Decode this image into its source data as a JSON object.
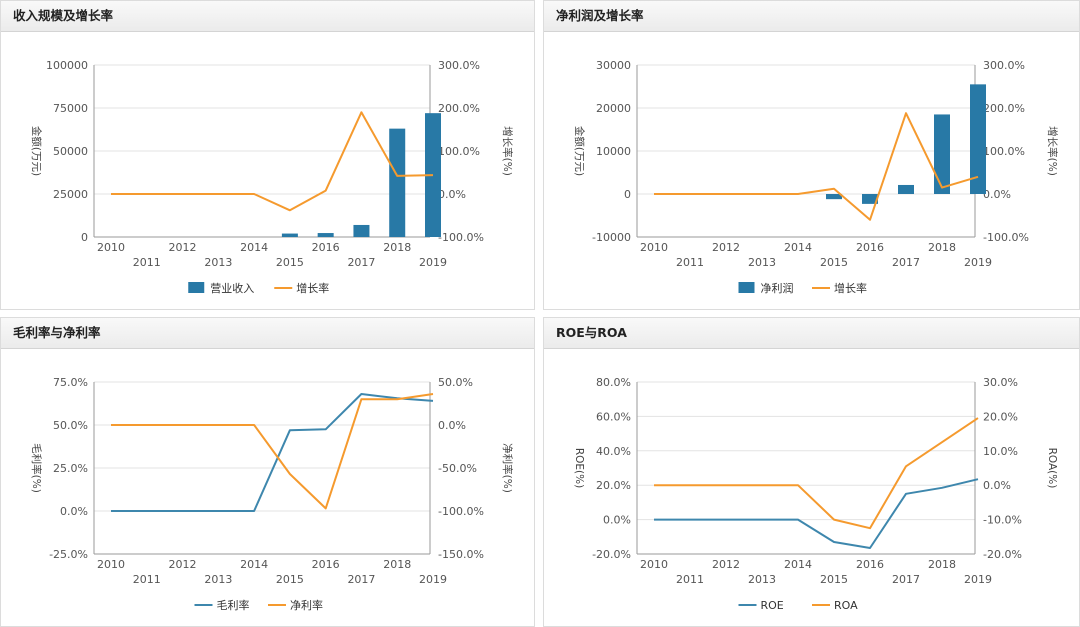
{
  "colors": {
    "bar": "#2879a6",
    "blue_line": "#3e87ad",
    "orange": "#f59a2e",
    "axis": "#9a9a9a",
    "grid": "#e3e3e3",
    "text": "#555555"
  },
  "years": [
    "2010",
    "2011",
    "2012",
    "2013",
    "2014",
    "2015",
    "2016",
    "2017",
    "2018",
    "2019"
  ],
  "chart_data": [
    {
      "id": "p1",
      "type": "bar+line",
      "title": "收入规模及增长率",
      "left_axis": {
        "label": "金额(万元)",
        "ticks": [
          "100000",
          "75000",
          "50000",
          "25000",
          "0"
        ],
        "range": [
          0,
          100000
        ]
      },
      "right_axis": {
        "label": "增长率(%)",
        "ticks": [
          "300.0%",
          "200.0%",
          "100.0%",
          "0.0%",
          "-100.0%"
        ],
        "range": [
          -100,
          300
        ]
      },
      "bars": {
        "name": "营业收入",
        "values": [
          0,
          0,
          0,
          0,
          0,
          2000,
          2300,
          7000,
          63000,
          72000
        ]
      },
      "line": {
        "name": "增长率",
        "axis": "right",
        "values": [
          0,
          0,
          0,
          0,
          0,
          -38,
          8,
          190,
          42,
          44
        ]
      }
    },
    {
      "id": "p2",
      "type": "bar+line",
      "title": "净利润及增长率",
      "left_axis": {
        "label": "金额(万元)",
        "ticks": [
          "30000",
          "20000",
          "10000",
          "0",
          "-10000"
        ],
        "range": [
          -10000,
          30000
        ]
      },
      "right_axis": {
        "label": "增长率(%)",
        "ticks": [
          "300.0%",
          "200.0%",
          "100.0%",
          "0.0%",
          "-100.0%"
        ],
        "range": [
          -100,
          300
        ]
      },
      "bars": {
        "name": "净利润",
        "values": [
          0,
          0,
          0,
          0,
          0,
          -1200,
          -2300,
          2100,
          18500,
          25500
        ]
      },
      "line": {
        "name": "增长率",
        "axis": "right",
        "values": [
          0,
          0,
          0,
          0,
          0,
          12,
          -60,
          188,
          15,
          40
        ]
      }
    },
    {
      "id": "p3",
      "type": "line",
      "title": "毛利率与净利率",
      "left_axis": {
        "label": "毛利率(%)",
        "ticks": [
          "75.0%",
          "50.0%",
          "25.0%",
          "0.0%",
          "-25.0%"
        ],
        "range": [
          -25,
          75
        ]
      },
      "right_axis": {
        "label": "净利率(%)",
        "ticks": [
          "50.0%",
          "0.0%",
          "-50.0%",
          "-100.0%",
          "-150.0%"
        ],
        "range": [
          -150,
          50
        ]
      },
      "lines": [
        {
          "name": "毛利率",
          "axis": "left",
          "color": "blue",
          "values": [
            0,
            0,
            0,
            0,
            0,
            47,
            47.5,
            68,
            65.5,
            64
          ]
        },
        {
          "name": "净利率",
          "axis": "right",
          "color": "orange",
          "values": [
            0,
            0,
            0,
            0,
            0,
            -57,
            -97,
            30,
            30,
            36
          ]
        }
      ]
    },
    {
      "id": "p4",
      "type": "line",
      "title": "ROE与ROA",
      "left_axis": {
        "label": "ROE(%)",
        "ticks": [
          "80.0%",
          "60.0%",
          "40.0%",
          "20.0%",
          "0.0%",
          "-20.0%"
        ],
        "range": [
          -20,
          80
        ]
      },
      "right_axis": {
        "label": "ROA(%)",
        "ticks": [
          "30.0%",
          "20.0%",
          "10.0%",
          "0.0%",
          "-10.0%",
          "-20.0%"
        ],
        "range": [
          -20,
          30
        ]
      },
      "lines": [
        {
          "name": "ROE",
          "axis": "left",
          "color": "blue",
          "values": [
            0,
            0,
            0,
            0,
            0,
            -13,
            -16.5,
            15,
            18.5,
            23.5
          ]
        },
        {
          "name": "ROA",
          "axis": "right",
          "color": "orange",
          "values": [
            0,
            0,
            0,
            0,
            0,
            -10,
            -12.5,
            5.5,
            12.5,
            19.5
          ]
        }
      ]
    }
  ]
}
